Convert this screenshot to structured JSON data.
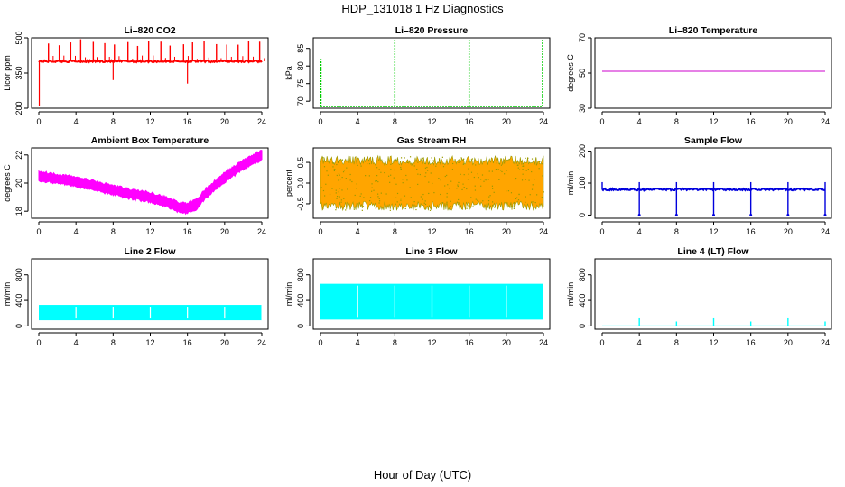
{
  "figure": {
    "title": "HDP_131018  1 Hz Diagnostics",
    "xlabel": "Hour of Day (UTC)"
  },
  "colors": {
    "co2": "#ff0000",
    "pressure": "#00cc00",
    "temperature": "#cc00cc",
    "ambient": "#ff00ff",
    "rh_fill": "#ffa500",
    "rh_point": "#999900",
    "flow": "#0000dd",
    "line": "#00ffff"
  },
  "chart_data": [
    {
      "id": "li820-co2",
      "type": "line",
      "title": "Li–820 CO2",
      "ylabel": "Licor ppm",
      "xlim": [
        0,
        24
      ],
      "ylim": [
        200,
        500
      ],
      "xticks": [
        "0",
        "4",
        "8",
        "12",
        "16",
        "20",
        "24"
      ],
      "yticks": [
        "200",
        "350",
        "500"
      ],
      "color_key": "co2",
      "series": [
        {
          "baseline": 400,
          "noise": 4,
          "spikes_up": [
            {
              "x": 0.0,
              "y": 400
            },
            {
              "x": 0.1,
              "y": 400
            }
          ],
          "spike_max": 495
        }
      ],
      "notes_values": {
        "start_dip": 210,
        "dip_at_8": 320,
        "dip_at_16": 305
      }
    },
    {
      "id": "li820-pressure",
      "type": "line",
      "title": "Li–820 Pressure",
      "ylabel": "kPa",
      "xlim": [
        0,
        24
      ],
      "ylim": [
        68,
        88
      ],
      "xticks": [
        "0",
        "4",
        "8",
        "12",
        "16",
        "20",
        "24"
      ],
      "yticks": [
        "70",
        "75",
        "80",
        "85"
      ],
      "color_key": "pressure",
      "series": [
        {
          "baseline": 68.5,
          "spikes": [
            {
              "x": 0.05,
              "y": 82
            },
            {
              "x": 8.0,
              "y": 87.5
            },
            {
              "x": 16.0,
              "y": 87.5
            },
            {
              "x": 23.9,
              "y": 87.5
            }
          ]
        }
      ]
    },
    {
      "id": "li820-temperature",
      "type": "line",
      "title": "Li–820 Temperature",
      "ylabel": "degrees C",
      "xlim": [
        0,
        24
      ],
      "ylim": [
        30,
        70
      ],
      "xticks": [
        "0",
        "4",
        "8",
        "12",
        "16",
        "20",
        "24"
      ],
      "yticks": [
        "30",
        "50",
        "70"
      ],
      "color_key": "temperature",
      "series": [
        {
          "x": [
            0,
            24
          ],
          "y": [
            51,
            51
          ]
        }
      ]
    },
    {
      "id": "ambient-box-temperature",
      "type": "area",
      "title": "Ambient Box Temperature",
      "ylabel": "degrees C",
      "xlim": [
        0,
        24
      ],
      "ylim": [
        17.5,
        22.5
      ],
      "xticks": [
        "0",
        "4",
        "8",
        "12",
        "16",
        "20",
        "24"
      ],
      "yticks": [
        "18",
        "20",
        "22"
      ],
      "color_key": "ambient",
      "series": [
        {
          "x": [
            0,
            2,
            4,
            6,
            8,
            10,
            12,
            14,
            15,
            16,
            17,
            18,
            20,
            22,
            24
          ],
          "y": [
            20.5,
            20.3,
            20.1,
            19.8,
            19.5,
            19.2,
            19.0,
            18.6,
            18.3,
            18.2,
            18.5,
            19.3,
            20.4,
            21.3,
            22.0
          ],
          "band": 0.35
        }
      ]
    },
    {
      "id": "gas-stream-rh",
      "type": "area",
      "title": "Gas Stream RH",
      "ylabel": "percent",
      "xlim": [
        0,
        24
      ],
      "ylim": [
        -0.85,
        0.85
      ],
      "xticks": [
        "0",
        "4",
        "8",
        "12",
        "16",
        "20",
        "24"
      ],
      "yticks": [
        "-0.5",
        "0.0",
        "0.5"
      ],
      "color_key": "rh_fill",
      "series": [
        {
          "center": 0.0,
          "amplitude": 0.55,
          "max_extent": 0.72
        }
      ]
    },
    {
      "id": "sample-flow",
      "type": "line",
      "title": "Sample Flow",
      "ylabel": "ml/min",
      "xlim": [
        0,
        24
      ],
      "ylim": [
        -10,
        210
      ],
      "xticks": [
        "0",
        "4",
        "8",
        "12",
        "16",
        "20",
        "24"
      ],
      "yticks": [
        "0",
        "100",
        "200"
      ],
      "color_key": "flow",
      "series": [
        {
          "baseline": 80,
          "dips": [
            4,
            8,
            12,
            16,
            20,
            24
          ],
          "dip_y": 0,
          "spike_y": 103
        }
      ]
    },
    {
      "id": "line2-flow",
      "type": "area",
      "title": "Line 2 Flow",
      "ylabel": "ml/min",
      "xlim": [
        0,
        24
      ],
      "ylim": [
        -50,
        1050
      ],
      "xticks": [
        "0",
        "4",
        "8",
        "12",
        "16",
        "20",
        "24"
      ],
      "yticks": [
        "0",
        "400",
        "800"
      ],
      "color_key": "line",
      "series": [
        {
          "low": 90,
          "high": 330
        }
      ]
    },
    {
      "id": "line3-flow",
      "type": "area",
      "title": "Line 3 Flow",
      "ylabel": "ml/min",
      "xlim": [
        0,
        24
      ],
      "ylim": [
        -50,
        1050
      ],
      "xticks": [
        "0",
        "4",
        "8",
        "12",
        "16",
        "20",
        "24"
      ],
      "yticks": [
        "0",
        "400",
        "800"
      ],
      "color_key": "line",
      "series": [
        {
          "low": 100,
          "high": 660
        }
      ]
    },
    {
      "id": "line4-flow",
      "type": "line",
      "title": "Line 4 (LT) Flow",
      "ylabel": "ml/min",
      "xlim": [
        0,
        24
      ],
      "ylim": [
        -50,
        1050
      ],
      "xticks": [
        "0",
        "4",
        "8",
        "12",
        "16",
        "20",
        "24"
      ],
      "yticks": [
        "0",
        "400",
        "800"
      ],
      "color_key": "line",
      "series": [
        {
          "baseline": 0,
          "spikes": [
            {
              "x": 4,
              "y": 120
            },
            {
              "x": 8,
              "y": 70
            },
            {
              "x": 12,
              "y": 120
            },
            {
              "x": 16,
              "y": 70
            },
            {
              "x": 20,
              "y": 120
            },
            {
              "x": 24,
              "y": 70
            }
          ]
        }
      ]
    }
  ]
}
